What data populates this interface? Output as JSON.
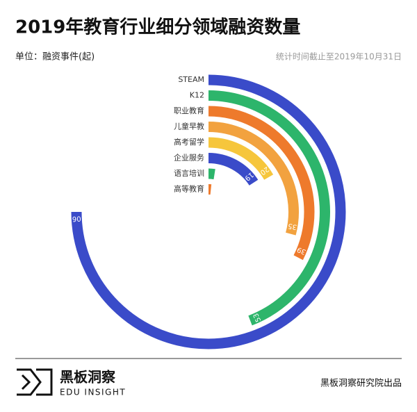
{
  "chart_data": {
    "type": "radial-bar",
    "title": "2019年教育行业细分领域融资数量",
    "unit_note": "单位：融资事件(起)",
    "date_note": "统计时间截止至2019年10月31日",
    "categories": [
      "STEAM",
      "K12",
      "职业教育",
      "儿童早教",
      "高考留学",
      "企业服务",
      "语言培训",
      "高等教育"
    ],
    "values": [
      90,
      53,
      39,
      35,
      20,
      19,
      3,
      2
    ],
    "value_labels": [
      "90",
      "53",
      "39",
      "35",
      "20",
      "19",
      null,
      null
    ],
    "colors": [
      "#3a4bc9",
      "#2db56b",
      "#ee7a2c",
      "#f2a23f",
      "#f6c63c",
      "#3a4bc9",
      "#2db56b",
      "#ee7a2c"
    ],
    "ylim": [
      0,
      120
    ]
  },
  "footer": {
    "brand": "黑板洞察",
    "brand_en": "EDU INSIGHT",
    "credit": "黑板洞察研究院出品"
  }
}
